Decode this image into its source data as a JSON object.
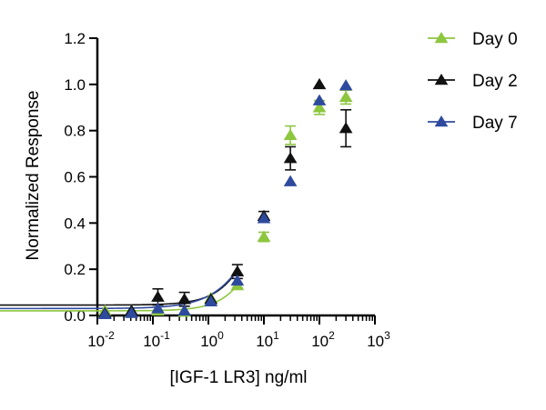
{
  "chart_data": {
    "type": "scatter",
    "xlabel": "[IGF-1 LR3] ng/ml",
    "ylabel": "Normalized Response",
    "x_scale": "log",
    "xlim": [
      0.01,
      1000
    ],
    "ylim": [
      0.0,
      1.2
    ],
    "x_ticks": [
      {
        "value": 0.01,
        "base": "10",
        "exp": "-2"
      },
      {
        "value": 0.1,
        "base": "10",
        "exp": "-1"
      },
      {
        "value": 1,
        "base": "10",
        "exp": "0"
      },
      {
        "value": 10,
        "base": "10",
        "exp": "1"
      },
      {
        "value": 100,
        "base": "10",
        "exp": "2"
      },
      {
        "value": 1000,
        "base": "10",
        "exp": "3"
      }
    ],
    "y_ticks": [
      {
        "value": 0.0,
        "label": "0.0"
      },
      {
        "value": 0.2,
        "label": "0.2"
      },
      {
        "value": 0.4,
        "label": "0.4"
      },
      {
        "value": 0.6,
        "label": "0.6"
      },
      {
        "value": 0.8,
        "label": "0.8"
      },
      {
        "value": 1.0,
        "label": "1.0"
      },
      {
        "value": 1.2,
        "label": "1.2"
      }
    ],
    "grid": false,
    "legend_position": "top-right",
    "x": [
      0.0137,
      0.0412,
      0.123,
      0.37,
      1.11,
      3.33,
      10,
      30,
      100,
      300
    ],
    "series": [
      {
        "name": "Day 0",
        "color": "#8dc63f",
        "marker": "triangle",
        "y": [
          0.02,
          0.02,
          0.02,
          0.015,
          0.075,
          0.13,
          0.34,
          0.78,
          0.9,
          0.945
        ],
        "err": [
          0.0,
          0.0,
          0.0,
          0.0,
          0.0,
          0.01,
          0.02,
          0.04,
          0.03,
          0.03
        ],
        "fit": {
          "bottom": 0.02,
          "top": 0.955,
          "ec50": 15.5,
          "hill": 1.3
        }
      },
      {
        "name": "Day 2",
        "color": "#111111",
        "marker": "triangle",
        "y": [
          0.01,
          0.02,
          0.08,
          0.07,
          0.07,
          0.19,
          0.43,
          0.68,
          1.0,
          0.81
        ],
        "err": [
          0.0,
          0.0,
          0.035,
          0.03,
          0.0,
          0.03,
          0.02,
          0.05,
          0.0,
          0.08
        ],
        "fit": {
          "bottom": 0.045,
          "top": 0.905,
          "ec50": 11.5,
          "hill": 1.25
        }
      },
      {
        "name": "Day 7",
        "color": "#2e4a9e",
        "marker": "triangle",
        "y": [
          0.005,
          0.01,
          0.03,
          0.02,
          0.06,
          0.15,
          0.42,
          0.58,
          0.93,
          0.995
        ],
        "err": [
          0.0,
          0.0,
          0.0,
          0.0,
          0.0,
          0.0,
          0.0,
          0.0,
          0.0,
          0.0
        ],
        "fit": {
          "bottom": 0.03,
          "top": 1.02,
          "ec50": 15.0,
          "hill": 1.05
        }
      }
    ]
  }
}
